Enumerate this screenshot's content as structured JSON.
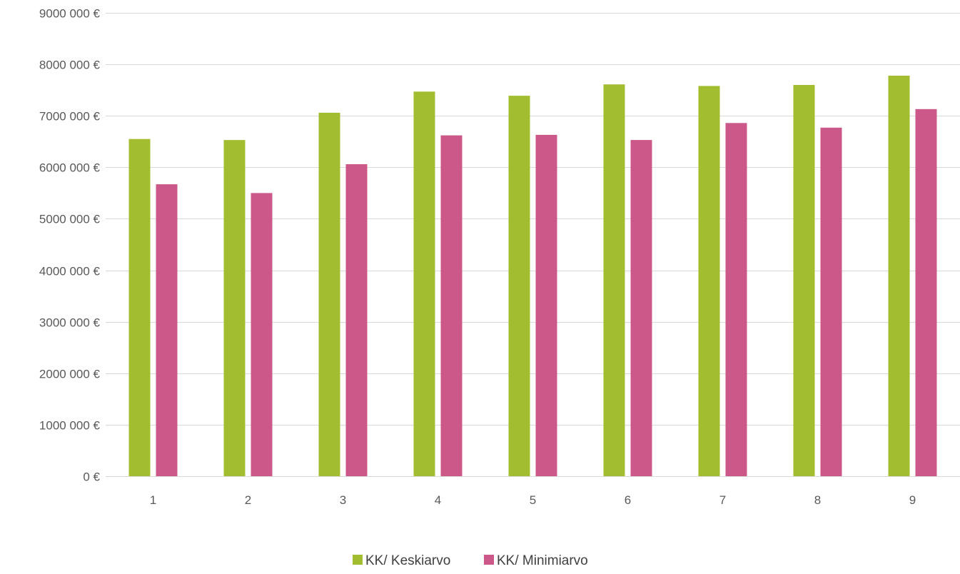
{
  "chart_data": {
    "type": "bar",
    "title": "",
    "xlabel": "",
    "ylabel": "",
    "categories": [
      "1",
      "2",
      "3",
      "4",
      "5",
      "6",
      "7",
      "8",
      "9"
    ],
    "series": [
      {
        "name": "KK/ Keskiarvo",
        "color": "#a3bd31",
        "values": [
          6550000,
          6530000,
          7060000,
          7470000,
          7390000,
          7610000,
          7580000,
          7600000,
          7780000
        ]
      },
      {
        "name": "KK/ Minimiarvo",
        "color": "#cb5889",
        "values": [
          5670000,
          5500000,
          6060000,
          6620000,
          6630000,
          6530000,
          6860000,
          6770000,
          7130000
        ]
      }
    ],
    "ylim": [
      0,
      9000000
    ],
    "y_ticks": [
      0,
      1000000,
      2000000,
      3000000,
      4000000,
      5000000,
      6000000,
      7000000,
      8000000,
      9000000
    ],
    "y_tick_labels": [
      "0 €",
      "1000 000 €",
      "2000 000 €",
      "3000 000 €",
      "4000 000 €",
      "5000 000 €",
      "6000 000 €",
      "7000 000 €",
      "8000 000 €",
      "9000 000 €"
    ],
    "grid": true,
    "legend_position": "bottom"
  }
}
